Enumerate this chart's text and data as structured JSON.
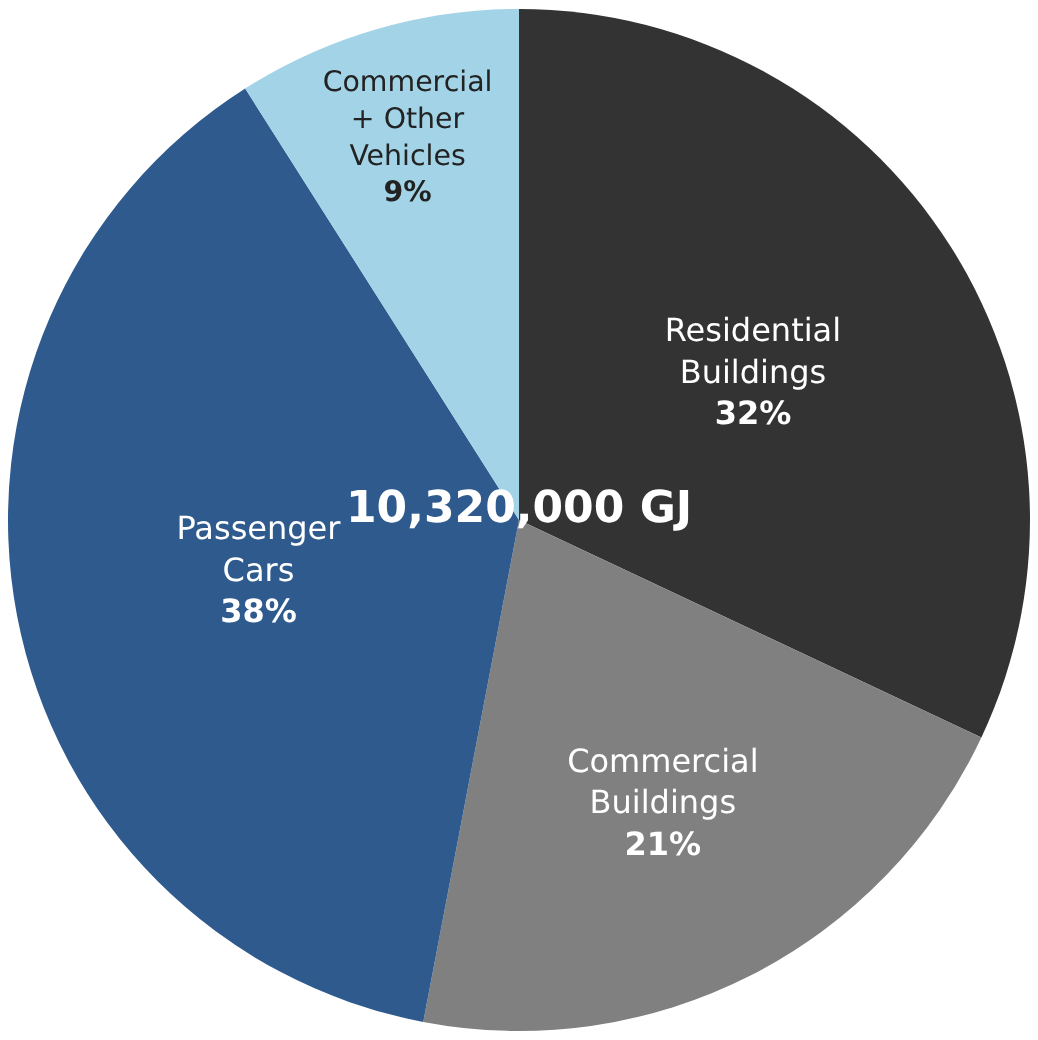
{
  "chart_data": {
    "type": "pie",
    "categories": [
      "Residential Buildings",
      "Commercial Buildings",
      "Passenger Cars",
      "Commercial + Other Vehicles"
    ],
    "values": [
      32,
      21,
      38,
      9
    ],
    "value_labels": [
      "32%",
      "21%",
      "38%",
      "9%"
    ],
    "colors": [
      "#333333",
      "#808080",
      "#2e5a8e",
      "#a3d3e6"
    ],
    "annotations": [
      "10,320,000 GJ"
    ],
    "legend": false
  }
}
